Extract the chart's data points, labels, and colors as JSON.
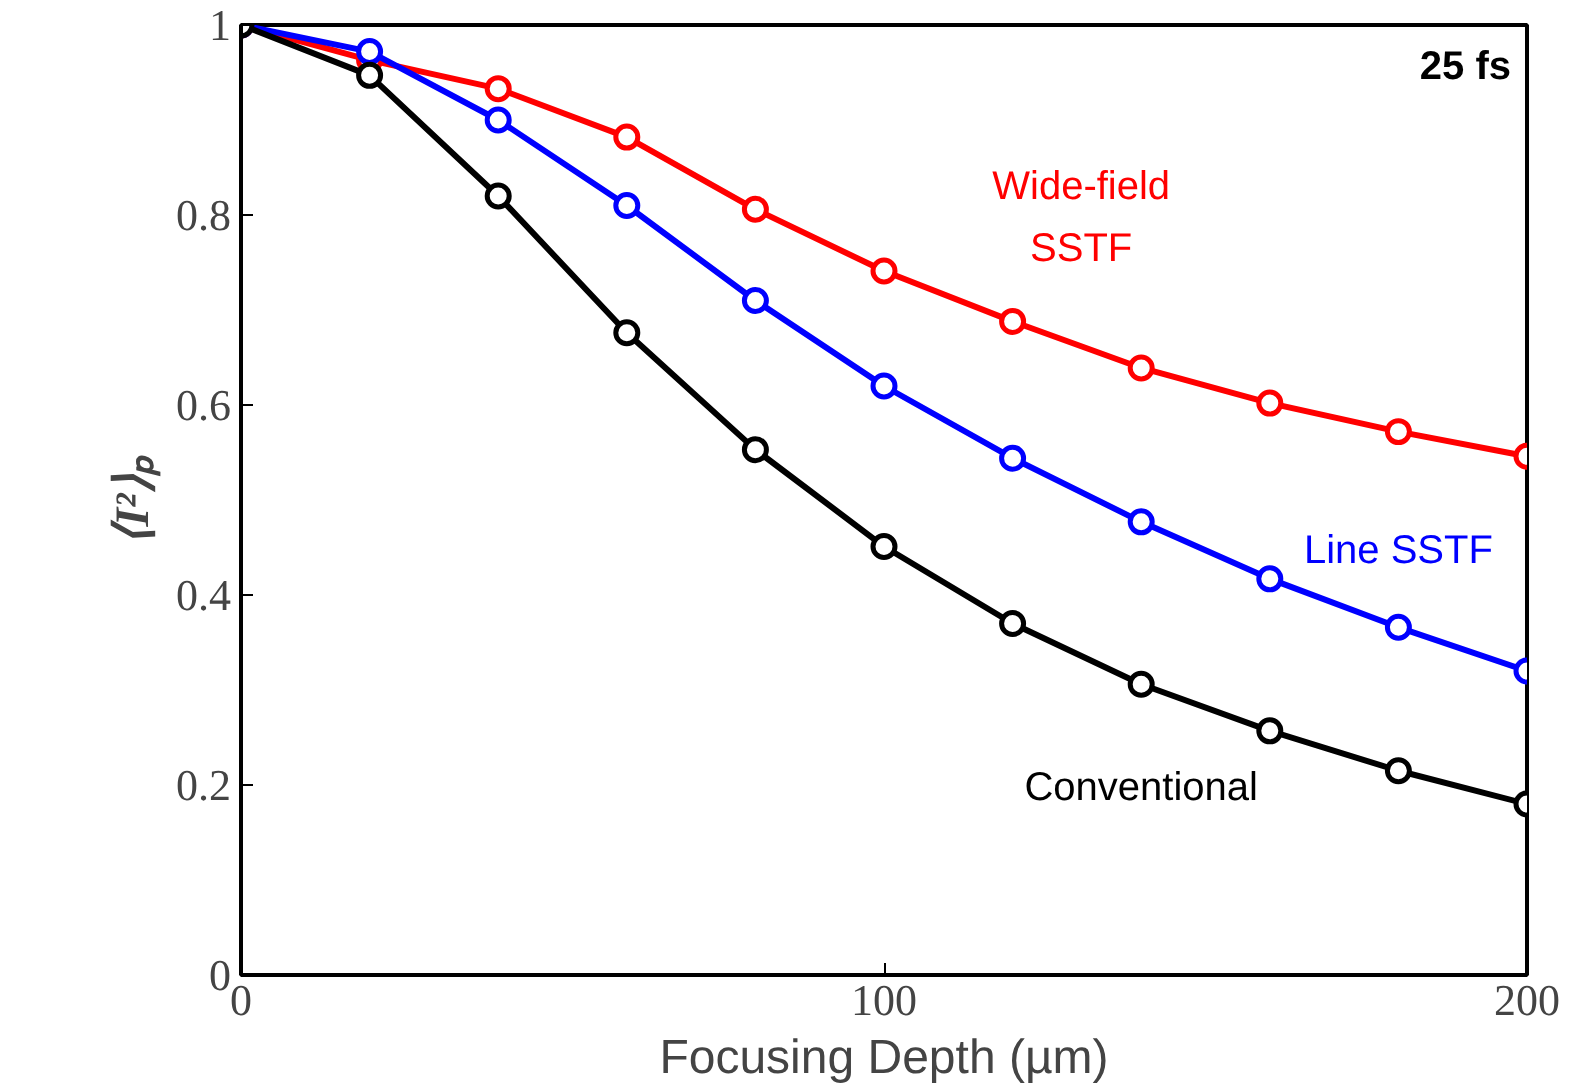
{
  "chart_data": {
    "type": "line",
    "title": "25 fs",
    "xlabel": "Focusing Depth (µm)",
    "ylabel": "⟨I²⟩ₚ",
    "x": [
      0,
      20,
      40,
      60,
      80,
      100,
      120,
      140,
      160,
      180,
      200
    ],
    "series": [
      {
        "name": "Wide-field\nSSTF",
        "color": "#ff0000",
        "values": [
          1,
          0.963,
          0.933,
          0.882,
          0.806,
          0.741,
          0.688,
          0.639,
          0.602,
          0.572,
          0.546
        ]
      },
      {
        "name": "Line SSTF",
        "color": "#0000ff",
        "values": [
          1,
          0.972,
          0.9,
          0.81,
          0.71,
          0.62,
          0.544,
          0.477,
          0.417,
          0.366,
          0.32
        ]
      },
      {
        "name": "Conventional",
        "color": "#000000",
        "values": [
          1,
          0.947,
          0.82,
          0.676,
          0.553,
          0.451,
          0.37,
          0.306,
          0.257,
          0.215,
          0.18
        ]
      }
    ],
    "xlim": [
      0,
      200
    ],
    "ylim": [
      0,
      1
    ],
    "xticks": [
      0,
      100,
      200
    ],
    "yticks": [
      0,
      0.2,
      0.4,
      0.6,
      0.8,
      1
    ],
    "grid": false,
    "marker": "circle",
    "line_style": "solid"
  }
}
